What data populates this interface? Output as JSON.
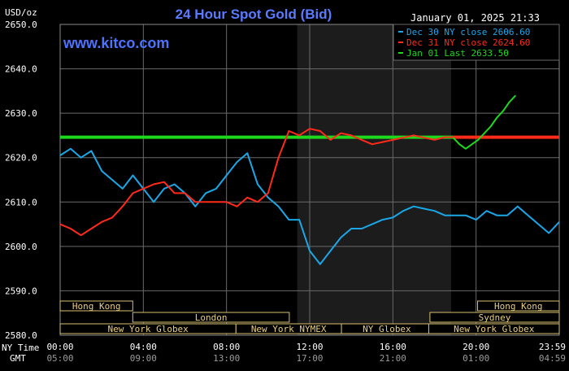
{
  "header": {
    "unit": "USD/oz",
    "title": "24 Hour Spot Gold (Bid)",
    "datetime": "January 01, 2025 21:33",
    "brand": "www.kitco.com"
  },
  "legend": [
    {
      "label": "Dec 30 NY close 2606.60",
      "color": "#1aa7e8"
    },
    {
      "label": "Dec 31 NY close 2624.60",
      "color": "#ff2a1a"
    },
    {
      "label": "Jan 01 Last 2633.50",
      "color": "#1ed81e"
    }
  ],
  "axis": {
    "row_label_ny": "NY Time",
    "row_label_gmt": "GMT",
    "y_ticks": [
      "2650.0",
      "2640.0",
      "2630.0",
      "2620.0",
      "2610.0",
      "2600.0",
      "2590.0",
      "2580.0"
    ],
    "x_ticks_ny": [
      "00:00",
      "04:00",
      "08:00",
      "12:00",
      "16:00",
      "20:00",
      "23:59"
    ],
    "x_ticks_gmt": [
      "05:00",
      "09:00",
      "13:00",
      "17:00",
      "21:00",
      "01:00",
      "04:59"
    ]
  },
  "sessions": [
    {
      "label": "Hong Kong",
      "start": 0,
      "end": 6.4
    },
    {
      "label": "London",
      "start": 6.4,
      "end": 20.2
    },
    {
      "label": "New York Globex",
      "start": 0,
      "end": 15.5
    },
    {
      "label": "New York NYMEX",
      "start": 15.5,
      "end": 24.8
    },
    {
      "label": "NY Globex",
      "start": 24.8,
      "end": 32.8
    },
    {
      "label": "Hong Kong",
      "start": 36.8,
      "end": 44
    },
    {
      "label": "Sydney",
      "start": 32.6,
      "end": 44
    },
    {
      "label": "New York Globex",
      "start": 32.5,
      "end": 44
    }
  ],
  "chart_data": {
    "type": "line",
    "title": "24 Hour Spot Gold (Bid)",
    "ylabel": "USD/oz",
    "xlabel": "NY Time / GMT",
    "ylim": [
      2580,
      2650
    ],
    "xlim": [
      0,
      24
    ],
    "grid": true,
    "shaded_region": [
      11.4,
      18.8
    ],
    "reference_line": {
      "name": "Dec 31 NY close",
      "value": 2624.6
    },
    "series": [
      {
        "name": "Dec 30 NY close 2606.60",
        "color": "#1aa7e8",
        "x": [
          0,
          0.5,
          1,
          1.5,
          2,
          2.5,
          3,
          3.5,
          4,
          4.5,
          5,
          5.5,
          6,
          6.5,
          7,
          7.5,
          8,
          8.5,
          9,
          9.5,
          10,
          10.5,
          11,
          11.5,
          12,
          12.5,
          13,
          13.5,
          14,
          14.5,
          15,
          15.5,
          16,
          16.5,
          17,
          17.5,
          18,
          18.5,
          19,
          19.5,
          20,
          20.5,
          21,
          21.5,
          22,
          22.5,
          23,
          23.5,
          24
        ],
        "values": [
          2620.5,
          2622,
          2620,
          2621.5,
          2617,
          2615,
          2613,
          2616,
          2613,
          2610,
          2613,
          2614,
          2612,
          2609,
          2612,
          2613,
          2616,
          2619,
          2621,
          2614,
          2611,
          2609,
          2606,
          2606,
          2599,
          2596,
          2599,
          2602,
          2604,
          2604,
          2605,
          2606,
          2606.5,
          2608,
          2609,
          2608.5,
          2608,
          2607,
          2607,
          2607,
          2606,
          2608,
          2607,
          2607,
          2609,
          2607,
          2605,
          2603,
          2605.5
        ]
      },
      {
        "name": "Dec 31 NY close 2624.60",
        "color": "#ff2a1a",
        "x": [
          0,
          0.5,
          1,
          1.5,
          2,
          2.5,
          3,
          3.5,
          4,
          4.5,
          5,
          5.5,
          6,
          6.5,
          7,
          7.5,
          8,
          8.5,
          9,
          9.5,
          10,
          10.5,
          11,
          11.5,
          12,
          12.5,
          13,
          13.5,
          14,
          14.5,
          15,
          15.5,
          16,
          16.5,
          17,
          17.5,
          18,
          18.5,
          19,
          19.5,
          20,
          20.5,
          21,
          21.5,
          22,
          22.5
        ],
        "values": [
          2605,
          2604,
          2602.5,
          2604,
          2605.5,
          2606.5,
          2609,
          2612,
          2613,
          2614,
          2614.5,
          2612,
          2612,
          2610,
          2610,
          2610,
          2610,
          2609,
          2611,
          2610,
          2612,
          2620,
          2626,
          2625,
          2626.5,
          2626,
          2624,
          2625.5,
          2625,
          2624,
          2623,
          2623.5,
          2624,
          2624.5,
          2625,
          2624.5,
          2624,
          2624.6,
          2624.6,
          2624.6,
          2624.6,
          2624.6,
          2624.6,
          2624.6,
          2624.6,
          2624.6
        ]
      },
      {
        "name": "Jan 01 Last 2633.50",
        "color": "#1ed81e",
        "x": [
          18.9,
          19.2,
          19.5,
          19.8,
          20.1,
          20.4,
          20.7,
          21,
          21.3,
          21.6,
          21.9
        ],
        "values": [
          2624.5,
          2623,
          2622,
          2623,
          2624,
          2625.5,
          2627,
          2629,
          2630.5,
          2632.5,
          2634
        ]
      }
    ]
  }
}
